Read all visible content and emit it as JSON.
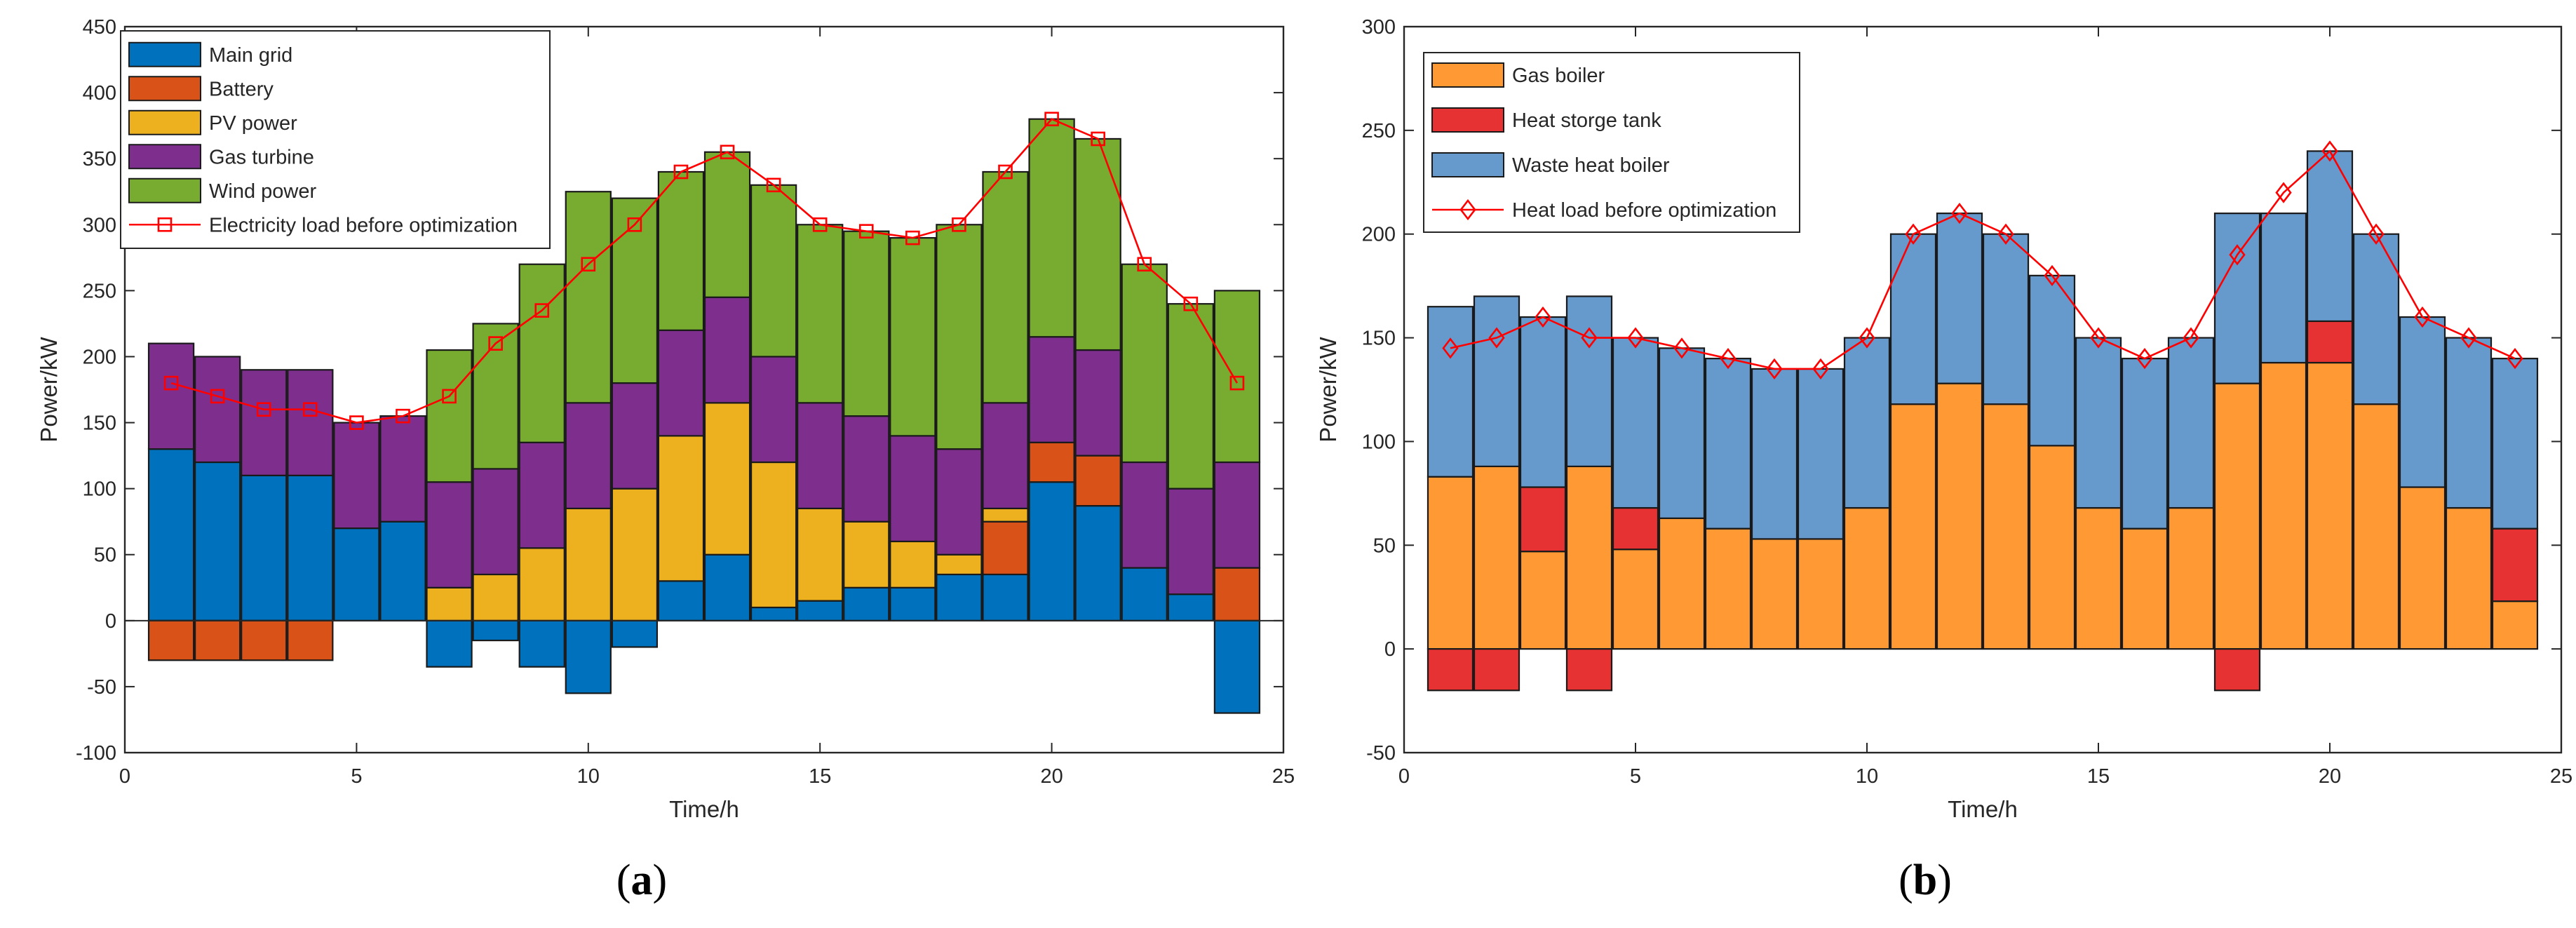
{
  "chart_data": [
    {
      "type": "bar",
      "stacked": true,
      "panel_label": "a",
      "xlabel": "Time/h",
      "ylabel": "Power/kW",
      "xlim": [
        0,
        25
      ],
      "ylim": [
        -100,
        450
      ],
      "xticks": [
        "0",
        "5",
        "10",
        "15",
        "20",
        "25"
      ],
      "yticks": [
        "-100",
        "-50",
        "0",
        "50",
        "100",
        "150",
        "200",
        "250",
        "300",
        "350",
        "400",
        "450"
      ],
      "legend_position": "top-left",
      "categories": [
        1,
        2,
        3,
        4,
        5,
        6,
        7,
        8,
        9,
        10,
        11,
        12,
        13,
        14,
        15,
        16,
        17,
        18,
        19,
        20,
        21,
        22,
        23,
        24
      ],
      "series": [
        {
          "name": "Main grid",
          "color": "#0072BD",
          "values": [
            130,
            120,
            110,
            110,
            70,
            75,
            -35,
            -15,
            -35,
            -55,
            -20,
            30,
            50,
            10,
            15,
            25,
            25,
            35,
            35,
            105,
            87,
            40,
            20,
            -70
          ]
        },
        {
          "name": "Battery",
          "color": "#D95319",
          "values": [
            -30,
            -30,
            -30,
            -30,
            0,
            0,
            0,
            0,
            0,
            0,
            0,
            0,
            0,
            0,
            0,
            0,
            0,
            0,
            40,
            30,
            38,
            0,
            0,
            40
          ]
        },
        {
          "name": "PV power",
          "color": "#EDB120",
          "values": [
            0,
            0,
            0,
            0,
            0,
            0,
            25,
            35,
            55,
            85,
            100,
            110,
            115,
            110,
            70,
            50,
            35,
            15,
            10,
            0,
            0,
            0,
            0,
            0
          ]
        },
        {
          "name": "Gas turbine",
          "color": "#7E2F8E",
          "values": [
            80,
            80,
            80,
            80,
            80,
            80,
            80,
            80,
            80,
            80,
            80,
            80,
            80,
            80,
            80,
            80,
            80,
            80,
            80,
            80,
            80,
            80,
            80,
            80
          ]
        },
        {
          "name": "Wind power",
          "color": "#77AC30",
          "values": [
            0,
            0,
            0,
            0,
            0,
            0,
            100,
            110,
            135,
            160,
            140,
            120,
            110,
            130,
            135,
            140,
            150,
            170,
            175,
            165,
            160,
            150,
            140,
            130
          ]
        }
      ],
      "line": {
        "name": "Electricity load  before optimization",
        "color": "#FF0000",
        "marker": "square",
        "values": [
          180,
          170,
          160,
          160,
          150,
          155,
          170,
          210,
          235,
          270,
          300,
          340,
          355,
          330,
          300,
          295,
          290,
          300,
          340,
          380,
          365,
          270,
          240,
          180
        ]
      }
    },
    {
      "type": "bar",
      "stacked": true,
      "panel_label": "b",
      "xlabel": "Time/h",
      "ylabel": "Power/kW",
      "xlim": [
        0,
        25
      ],
      "ylim": [
        -50,
        300
      ],
      "xticks": [
        "0",
        "5",
        "10",
        "15",
        "20",
        "25"
      ],
      "yticks": [
        "-50",
        "0",
        "50",
        "100",
        "150",
        "200",
        "250",
        "300"
      ],
      "legend_position": "top-left",
      "categories": [
        1,
        2,
        3,
        4,
        5,
        6,
        7,
        8,
        9,
        10,
        11,
        12,
        13,
        14,
        15,
        16,
        17,
        18,
        19,
        20,
        21,
        22,
        23,
        24
      ],
      "series": [
        {
          "name": "Gas boiler",
          "color": "#FF9933",
          "values": [
            83,
            88,
            47,
            88,
            48,
            63,
            58,
            53,
            53,
            68,
            118,
            128,
            118,
            98,
            68,
            58,
            68,
            128,
            138,
            138,
            118,
            78,
            68,
            23
          ]
        },
        {
          "name": "Heat storge tank",
          "color": "#E63232",
          "values": [
            -20,
            -20,
            31,
            -20,
            20,
            0,
            0,
            0,
            0,
            0,
            0,
            0,
            0,
            0,
            0,
            0,
            0,
            -20,
            0,
            20,
            0,
            0,
            0,
            35
          ]
        },
        {
          "name": "Waste heat boiler",
          "color": "#6699CC",
          "values": [
            82,
            82,
            82,
            82,
            82,
            82,
            82,
            82,
            82,
            82,
            82,
            82,
            82,
            82,
            82,
            82,
            82,
            82,
            72,
            82,
            82,
            82,
            82,
            82
          ]
        }
      ],
      "line": {
        "name": "Heat load before optimization",
        "color": "#FF0000",
        "marker": "diamond",
        "values": [
          145,
          150,
          160,
          150,
          150,
          145,
          140,
          135,
          135,
          150,
          200,
          210,
          200,
          180,
          150,
          140,
          150,
          190,
          220,
          240,
          200,
          160,
          150,
          140
        ]
      }
    }
  ]
}
